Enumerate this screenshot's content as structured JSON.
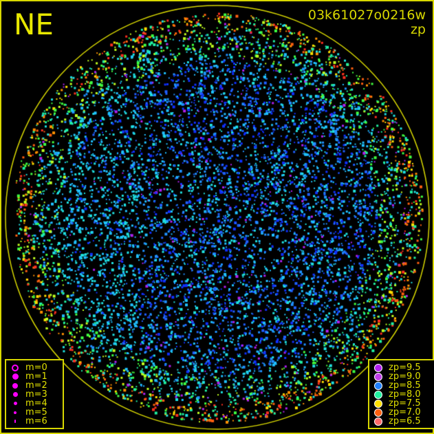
{
  "header": {
    "direction": "NE",
    "image_id": "03k61027o0216w",
    "mode": "zp"
  },
  "colors": {
    "frame": "#d8d800",
    "horizon_circle": "#d8d800",
    "text": "#e0e000",
    "magnitude_symbol": "#ff00ff"
  },
  "magnitude_legend": [
    {
      "label": "m=0",
      "hollow": true
    },
    {
      "label": "m=1"
    },
    {
      "label": "m=2"
    },
    {
      "label": "m=3"
    },
    {
      "label": "m=4"
    },
    {
      "label": "m=5"
    },
    {
      "label": "m=6"
    }
  ],
  "zp_legend": [
    {
      "label": "zp=9.5",
      "color": "#b020f0"
    },
    {
      "label": "zp=9.0",
      "color": "#c040e8"
    },
    {
      "label": "zp=8.5",
      "color": "#2080ff"
    },
    {
      "label": "zp=8.0",
      "color": "#20f0a0"
    },
    {
      "label": "zp=7.5",
      "color": "#ffe000"
    },
    {
      "label": "zp=7.0",
      "color": "#ff6010"
    },
    {
      "label": "zp=6.5",
      "color": "#ff6a6a"
    }
  ]
}
